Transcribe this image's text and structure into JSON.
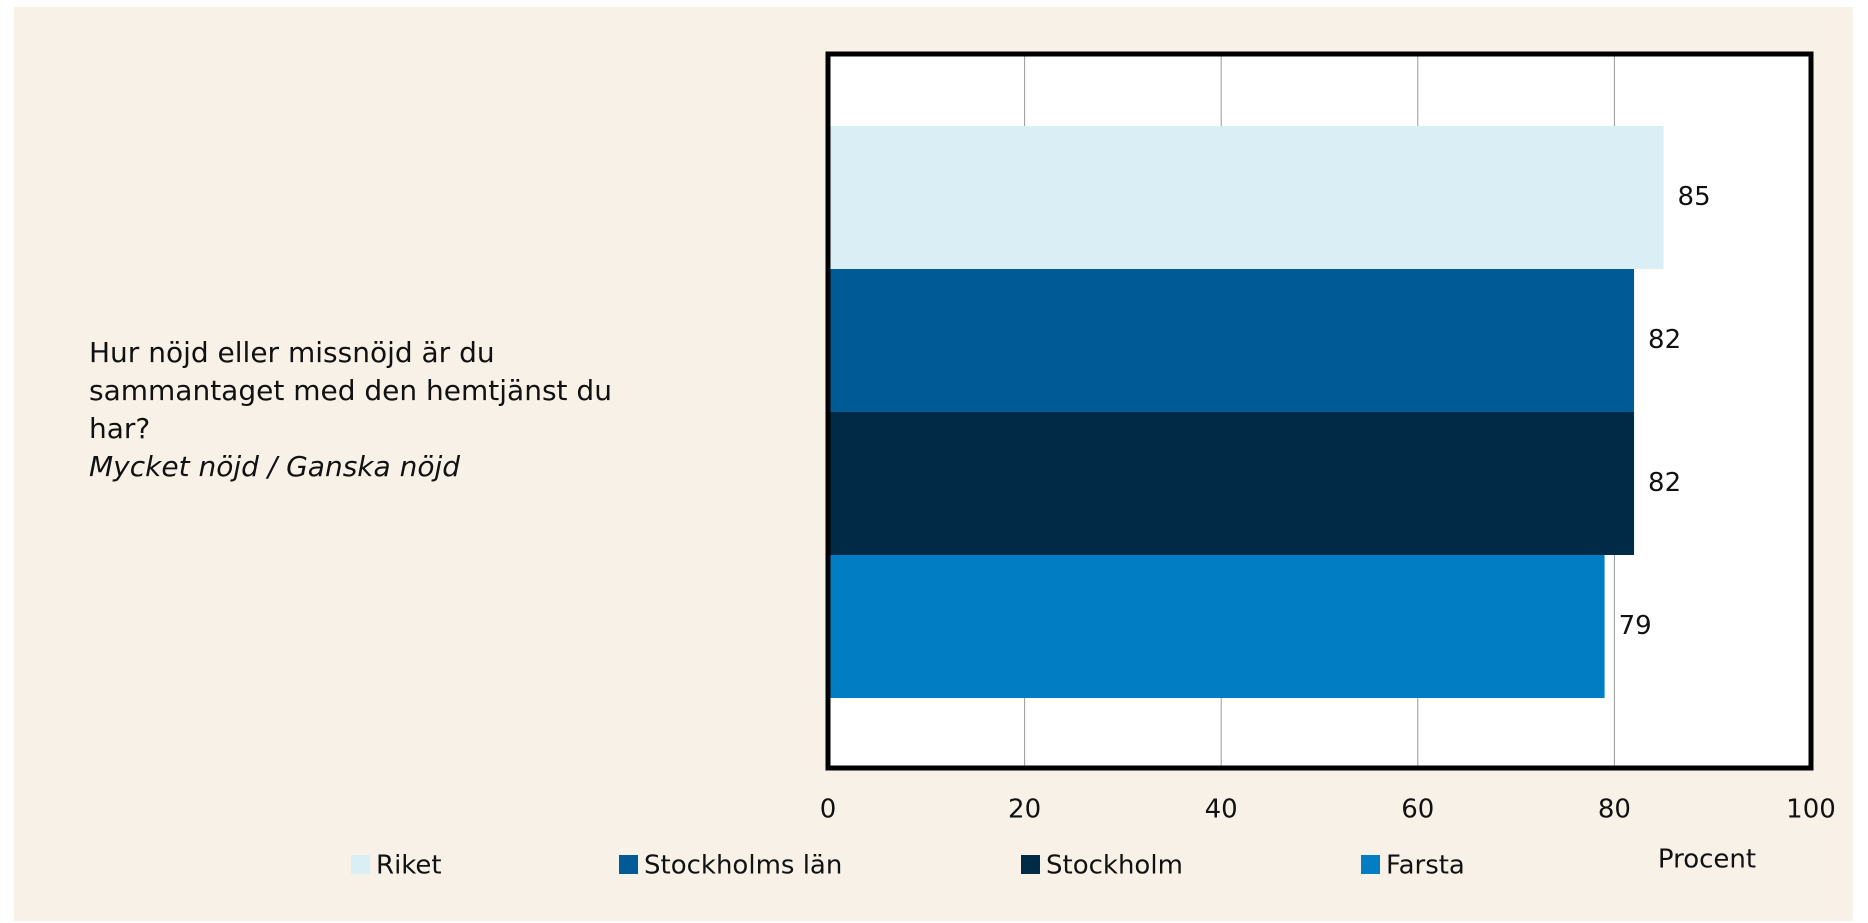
{
  "chart_data": {
    "type": "bar",
    "orientation": "horizontal",
    "categories": [
      "Hur nöjd eller missnöjd är du sammantaget med den hemtjänst du har?"
    ],
    "subtitle": "Mycket nöjd / Ganska nöjd",
    "series": [
      {
        "name": "Riket",
        "color": "#daeef5",
        "values": [
          85
        ]
      },
      {
        "name": "Stockholms län",
        "color": "#005a96",
        "values": [
          82
        ]
      },
      {
        "name": "Stockholm",
        "color": "#002a45",
        "values": [
          82
        ]
      },
      {
        "name": "Farsta",
        "color": "#007dc3",
        "values": [
          79
        ]
      }
    ],
    "xlim": [
      0,
      100
    ],
    "xticks": [
      0,
      20,
      40,
      60,
      80,
      100
    ],
    "x_label": "Procent",
    "grid": true
  }
}
